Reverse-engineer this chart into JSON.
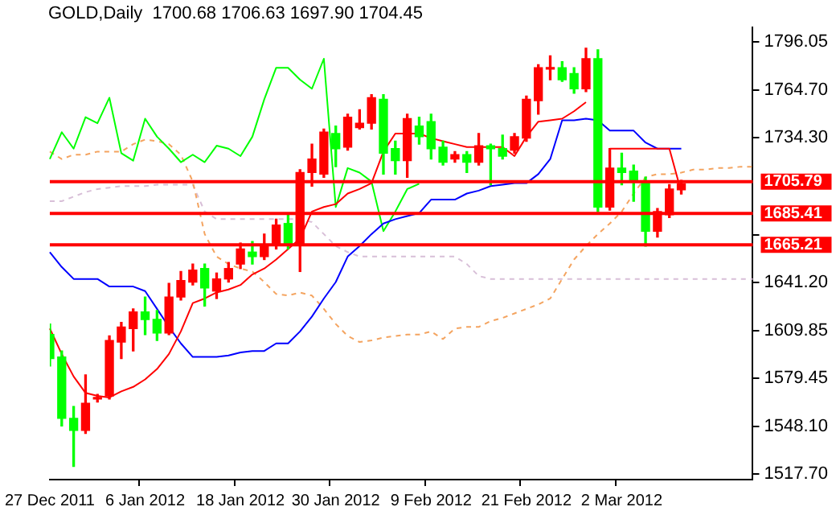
{
  "chart_data": {
    "type": "candlestick",
    "title": "GOLD,Daily  1700.68 1706.63 1697.90 1704.45",
    "categories": [
      "27 Dec 2011",
      null,
      null,
      null,
      null,
      null,
      null,
      null,
      "6 Jan 2012",
      null,
      null,
      null,
      null,
      null,
      null,
      null,
      "18 Jan 2012",
      null,
      null,
      null,
      null,
      null,
      null,
      null,
      "30 Jan 2012",
      null,
      null,
      null,
      null,
      null,
      null,
      null,
      "9 Feb 2012",
      null,
      null,
      null,
      null,
      null,
      null,
      null,
      "21 Feb 2012",
      null,
      null,
      null,
      null,
      null,
      null,
      null,
      "2 Mar 2012",
      null,
      null,
      null,
      null,
      null,
      null,
      null,
      null,
      null,
      null,
      null
    ],
    "ohlc": [
      [
        1607.4,
        1614.2,
        1587.2,
        1592.0
      ],
      [
        1593.0,
        1596.8,
        1548.6,
        1553.4
      ],
      [
        1553.4,
        1561.1,
        1522.5,
        1545.7
      ],
      [
        1545.7,
        1581.4,
        1543.8,
        1563.1
      ],
      [
        1565.9,
        1568.8,
        1564.0,
        1566.9
      ],
      [
        1567.9,
        1606.5,
        1565.9,
        1603.6
      ],
      [
        1602.6,
        1615.2,
        1592.0,
        1612.3
      ],
      [
        1611.3,
        1623.9,
        1596.8,
        1621.9
      ],
      [
        1621.9,
        1631.6,
        1607.4,
        1617.1
      ],
      [
        1617.1,
        1622.9,
        1603.6,
        1608.4
      ],
      [
        1608.4,
        1640.3,
        1607.4,
        1631.6
      ],
      [
        1631.6,
        1648.0,
        1629.6,
        1642.2
      ],
      [
        1641.2,
        1652.8,
        1639.3,
        1648.9
      ],
      [
        1649.9,
        1652.8,
        1625.8,
        1637.4
      ],
      [
        1635.4,
        1647.0,
        1630.6,
        1643.2
      ],
      [
        1643.2,
        1653.8,
        1641.2,
        1649.9
      ],
      [
        1652.8,
        1666.3,
        1649.9,
        1662.5
      ],
      [
        1660.5,
        1667.3,
        1652.8,
        1657.6
      ],
      [
        1657.6,
        1672.1,
        1655.7,
        1665.3
      ],
      [
        1665.3,
        1681.7,
        1662.5,
        1677.9
      ],
      [
        1678.9,
        1684.6,
        1662.5,
        1665.3
      ],
      [
        1665.3,
        1713.6,
        1648.0,
        1711.7
      ],
      [
        1711.7,
        1730.0,
        1703.0,
        1720.4
      ],
      [
        1710.7,
        1739.7,
        1708.7,
        1737.7
      ],
      [
        1736.8,
        1741.6,
        1715.5,
        1727.1
      ],
      [
        1728.1,
        1749.3,
        1726.1,
        1747.4
      ],
      [
        1740.6,
        1752.2,
        1739.7,
        1743.5
      ],
      [
        1743.5,
        1761.9,
        1739.7,
        1759.9
      ],
      [
        1758.9,
        1761.9,
        1710.7,
        1724.2
      ],
      [
        1727.1,
        1731.9,
        1710.7,
        1719.4
      ],
      [
        1719.4,
        1749.3,
        1708.7,
        1746.4
      ],
      [
        1741.6,
        1747.4,
        1730.0,
        1734.8
      ],
      [
        1744.5,
        1749.3,
        1720.4,
        1727.1
      ],
      [
        1728.1,
        1731.9,
        1716.5,
        1718.4
      ],
      [
        1720.4,
        1725.2,
        1718.4,
        1723.2
      ],
      [
        1723.2,
        1725.2,
        1711.7,
        1718.4
      ],
      [
        1718.4,
        1736.8,
        1716.5,
        1729.0
      ],
      [
        1729.0,
        1730.0,
        1703.9,
        1727.1
      ],
      [
        1727.1,
        1735.8,
        1720.4,
        1722.3
      ],
      [
        1726.1,
        1736.8,
        1724.2,
        1734.8
      ],
      [
        1733.9,
        1760.9,
        1731.9,
        1758.9
      ],
      [
        1758.0,
        1781.2,
        1749.3,
        1779.2
      ],
      [
        1778.3,
        1786.9,
        1771.5,
        1779.2
      ],
      [
        1779.2,
        1783.1,
        1770.5,
        1771.5
      ],
      [
        1775.4,
        1779.2,
        1762.8,
        1765.7
      ],
      [
        1765.7,
        1791.8,
        1763.8,
        1785.0
      ],
      [
        1785.0,
        1790.8,
        1686.6,
        1689.5
      ],
      [
        1689.5,
        1727.1,
        1687.5,
        1714.6
      ],
      [
        1714.6,
        1724.2,
        1703.9,
        1711.7
      ],
      [
        1712.6,
        1716.5,
        1693.3,
        1705.9
      ],
      [
        1705.9,
        1708.7,
        1664.4,
        1674.0
      ],
      [
        1674.0,
        1688.5,
        1670.2,
        1686.6
      ],
      [
        1684.6,
        1703.9,
        1682.7,
        1701.1
      ],
      [
        1700.68,
        1706.63,
        1697.9,
        1704.45
      ],
      null,
      null,
      null,
      null,
      null,
      null
    ],
    "colors": [
      "#00ff00",
      "#00ff00",
      "#00ff00",
      "#ff0000",
      "#ff0000",
      "#ff0000",
      "#ff0000",
      "#ff0000",
      "#00ff00",
      "#00ff00",
      "#ff0000",
      "#ff0000",
      "#ff0000",
      "#00ff00",
      "#ff0000",
      "#ff0000",
      "#ff0000",
      "#00ff00",
      "#ff0000",
      "#ff0000",
      "#00ff00",
      "#ff0000",
      "#ff0000",
      "#ff0000",
      "#00ff00",
      "#ff0000",
      "#ff0000",
      "#ff0000",
      "#00ff00",
      "#00ff00",
      "#ff0000",
      "#00ff00",
      "#00ff00",
      "#00ff00",
      "#ff0000",
      "#00ff00",
      "#ff0000",
      "#00ff00",
      "#00ff00",
      "#ff0000",
      "#ff0000",
      "#ff0000",
      "#ff0000",
      "#00ff00",
      "#00ff00",
      "#ff0000",
      "#00ff00",
      "#ff0000",
      "#00ff00",
      "#00ff00",
      "#00ff00",
      "#ff0000",
      "#ff0000",
      "#ff0000",
      null,
      null,
      null,
      null,
      null,
      null
    ],
    "series": [
      {
        "type": "line",
        "color": "#ff0000",
        "values": [
          1611.3,
          1594.9,
          1580.4,
          1569.8,
          1567.9,
          1566.9,
          1570.8,
          1573.7,
          1578.5,
          1585.2,
          1594.9,
          1609.4,
          1627.7,
          1630.6,
          1634.5,
          1636.4,
          1639.3,
          1646.1,
          1649.9,
          1655.7,
          1662.5,
          1669.2,
          1686.6,
          1689.5,
          1691.4,
          1698.2,
          1701.1,
          1704.9,
          1725.2,
          1736.8,
          1736.8,
          1736.8,
          1733.9,
          1731.9,
          1730.0,
          1728.1,
          1728.1,
          1728.1,
          1728.1,
          1722.3,
          1734.8,
          1744.5,
          1745.4,
          1746.4,
          1751.2,
          1757.0,
          null,
          1727.1,
          1727.1,
          1727.1,
          1727.1,
          1727.1,
          1727.1,
          1699.1,
          null,
          null,
          null,
          null,
          null,
          null
        ]
      },
      {
        "type": "line",
        "color": "#0000ff",
        "values": [
          1660.5,
          1650.9,
          1643.2,
          1643.2,
          1643.2,
          1638.3,
          1638.3,
          1638.3,
          1635.4,
          1623.9,
          1612.3,
          1601.7,
          1593.0,
          1593.0,
          1593.0,
          1593.9,
          1595.9,
          1596.8,
          1596.8,
          1601.7,
          1601.7,
          1609.4,
          1619.0,
          1630.6,
          1641.2,
          1657.6,
          1664.4,
          1672.1,
          1678.9,
          1681.7,
          1683.7,
          1685.6,
          1694.3,
          1694.3,
          1694.3,
          1698.2,
          1700.1,
          1703.0,
          1703.9,
          1704.9,
          1704.9,
          1710.7,
          1720.4,
          1745.4,
          1745.4,
          1746.4,
          1745.4,
          1738.7,
          1738.7,
          1738.7,
          1731.0,
          1727.1,
          1727.1,
          1727.1,
          null,
          null,
          null,
          null,
          null,
          null
        ]
      },
      {
        "type": "line",
        "color": "#00ff00",
        "values": [
          1720.4,
          1737.7,
          1727.1,
          1747.4,
          1743.5,
          1759.9,
          1724.2,
          1719.4,
          1746.4,
          1734.8,
          1727.1,
          1718.4,
          1723.2,
          1718.4,
          1729.0,
          1727.1,
          1722.3,
          1734.8,
          1758.9,
          1779.2,
          1779.2,
          1771.5,
          1765.7,
          1785.0,
          1689.5,
          1714.6,
          1711.7,
          1705.9,
          1674.0,
          1686.6,
          1701.1,
          1704.45,
          null,
          null,
          null,
          null,
          null,
          null,
          null,
          null,
          null,
          null,
          null,
          null,
          null,
          null,
          null,
          null,
          null,
          null,
          null,
          null,
          null,
          null,
          null,
          null,
          null,
          null,
          null,
          null
        ]
      },
      {
        "type": "line",
        "color": "#f4a460",
        "line_style": "dashed",
        "values": [
          1725.2,
          1720.4,
          1723.2,
          1723.2,
          1725.2,
          1725.2,
          1725.2,
          1730.0,
          1732.9,
          1731.9,
          1730.0,
          1723.2,
          1705.9,
          1672.1,
          1657.6,
          1652.8,
          1649.9,
          1648.0,
          1641.2,
          1633.5,
          1632.5,
          1634.5,
          1632.5,
          1623.9,
          1614.2,
          1606.5,
          1602.6,
          1603.6,
          1605.5,
          1606.5,
          1607.4,
          1607.4,
          1609.4,
          1604.5,
          1611.3,
          1612.3,
          1612.3,
          1616.1,
          1618.1,
          1621.0,
          1623.9,
          1626.8,
          1630.6,
          1643.2,
          1655.7,
          1664.4,
          1672.1,
          1678.9,
          1686.6,
          1698.2,
          1708.7,
          1710.7,
          1710.7,
          1711.7,
          1713.6,
          1713.6,
          1714.6,
          1714.6,
          1715.5,
          1715.5
        ]
      },
      {
        "type": "line",
        "color": "#d8bfd8",
        "line_style": "dashed",
        "values": [
          1693.3,
          1693.3,
          1696.2,
          1699.1,
          1701.1,
          1702.0,
          1703.0,
          1703.0,
          1703.0,
          1703.9,
          1703.9,
          1703.9,
          1703.9,
          1686.6,
          1681.7,
          1681.7,
          1681.7,
          1681.7,
          1681.7,
          1681.7,
          1681.7,
          1681.7,
          1679.8,
          1672.1,
          1664.4,
          1660.5,
          1657.6,
          1657.6,
          1657.6,
          1657.6,
          1657.6,
          1657.6,
          1657.6,
          1657.6,
          1657.6,
          1652.8,
          1645.1,
          1643.2,
          1643.2,
          1643.2,
          1643.2,
          1643.2,
          1643.2,
          1643.2,
          1643.2,
          1643.2,
          1643.2,
          1643.2,
          1643.2,
          1643.2,
          1643.2,
          1643.2,
          1643.2,
          1643.2,
          1643.2,
          1643.2,
          1643.2,
          1643.2,
          1643.2,
          1643.2
        ]
      }
    ],
    "ylim": [
      1514,
      1805
    ],
    "yticks": [
      {
        "value": 1517.7,
        "label": "1517.70"
      },
      {
        "value": 1548.1,
        "label": "1548.10"
      },
      {
        "value": 1579.45,
        "label": "1579.45"
      },
      {
        "value": 1609.85,
        "label": "1609.85"
      },
      {
        "value": 1641.2,
        "label": "1641.20"
      },
      {
        "value": 1671.6,
        "label": null
      },
      {
        "value": 1734.3,
        "label": "1734.30"
      },
      {
        "value": 1764.7,
        "label": "1764.70"
      },
      {
        "value": 1796.05,
        "label": "1796.05"
      }
    ],
    "ref_lines": [
      {
        "axis": "y",
        "value": 1705.79,
        "label": "1705.79",
        "color": "#ff0000"
      },
      {
        "axis": "y",
        "value": 1685.41,
        "label": "1685.41",
        "color": "#ff0000"
      },
      {
        "axis": "y",
        "value": 1665.21,
        "label": "1665.21",
        "color": "#ff0000"
      }
    ]
  }
}
